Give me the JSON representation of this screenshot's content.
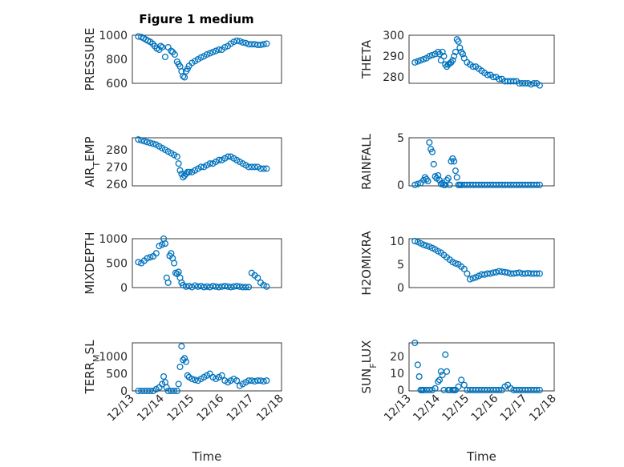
{
  "figure_title": "Figure 1 medium",
  "colors": {
    "marker": "#0072BD",
    "axis": "#262626"
  },
  "chart_data": [
    {
      "type": "scatter",
      "id": "pressure",
      "title": "Figure 1 medium",
      "ylabel": "PRESSURE",
      "ylabel_parts": [
        {
          "t": "PRESSURE"
        }
      ],
      "xlabel": "",
      "ylim": [
        600,
        1000
      ],
      "yticks": [
        "600",
        "800",
        "1000"
      ],
      "xticks": [],
      "xlim": [
        0,
        5
      ],
      "x": [
        0.2,
        0.3,
        0.38,
        0.45,
        0.52,
        0.6,
        0.68,
        0.75,
        0.82,
        0.9,
        0.95,
        1.0,
        1.1,
        1.2,
        1.3,
        1.35,
        1.42,
        1.5,
        1.55,
        1.6,
        1.65,
        1.7,
        1.75,
        1.8,
        1.85,
        1.9,
        2.0,
        2.1,
        2.2,
        2.3,
        2.4,
        2.5,
        2.6,
        2.7,
        2.8,
        2.9,
        3.0,
        3.1,
        3.2,
        3.3,
        3.4,
        3.5,
        3.6,
        3.7,
        3.8,
        3.9,
        4.0,
        4.1,
        4.2,
        4.3,
        4.4,
        4.5
      ],
      "y": [
        990,
        985,
        975,
        965,
        955,
        945,
        930,
        910,
        890,
        880,
        910,
        900,
        820,
        900,
        870,
        860,
        840,
        780,
        760,
        740,
        700,
        660,
        650,
        700,
        720,
        745,
        770,
        785,
        800,
        815,
        825,
        840,
        850,
        860,
        870,
        880,
        880,
        900,
        910,
        930,
        945,
        955,
        950,
        940,
        935,
        925,
        925,
        925,
        920,
        920,
        925,
        930
      ]
    },
    {
      "type": "scatter",
      "id": "theta",
      "ylabel": "THETA",
      "ylabel_parts": [
        {
          "t": "THETA"
        }
      ],
      "xlabel": "",
      "ylim": [
        277,
        300
      ],
      "yticks": [
        "280",
        "290",
        "300"
      ],
      "xticks": [],
      "xlim": [
        0,
        5
      ],
      "x": [
        0.2,
        0.3,
        0.4,
        0.5,
        0.6,
        0.7,
        0.8,
        0.9,
        1.0,
        1.05,
        1.1,
        1.15,
        1.2,
        1.25,
        1.3,
        1.35,
        1.4,
        1.45,
        1.5,
        1.55,
        1.6,
        1.65,
        1.7,
        1.75,
        1.8,
        1.85,
        1.9,
        2.0,
        2.1,
        2.2,
        2.3,
        2.4,
        2.5,
        2.6,
        2.7,
        2.8,
        2.9,
        3.0,
        3.1,
        3.2,
        3.3,
        3.4,
        3.5,
        3.6,
        3.7,
        3.8,
        3.9,
        4.0,
        4.1,
        4.2,
        4.3,
        4.4,
        4.5
      ],
      "y": [
        287,
        287.5,
        288,
        288.5,
        289,
        290,
        290.5,
        291,
        292,
        291,
        288,
        292,
        290,
        286,
        285,
        286,
        286.5,
        287,
        288,
        290,
        292,
        298,
        297,
        294,
        292,
        291,
        289,
        287,
        286,
        285,
        285,
        284,
        283,
        282,
        281,
        281,
        280,
        280,
        279,
        279,
        278,
        278,
        278,
        278,
        278,
        277,
        277,
        277,
        277,
        276.5,
        277,
        277,
        276
      ]
    },
    {
      "type": "scatter",
      "id": "airtemp",
      "ylabel": "AIR_TEMP",
      "ylabel_parts": [
        {
          "t": "AIR"
        },
        {
          "t": "T",
          "sub": true
        },
        {
          "t": "EMP"
        }
      ],
      "xlabel": "",
      "ylim": [
        259,
        287
      ],
      "yticks": [
        "260",
        "270",
        "280"
      ],
      "xticks": [],
      "xlim": [
        0,
        5
      ],
      "x": [
        0.2,
        0.3,
        0.4,
        0.5,
        0.6,
        0.7,
        0.8,
        0.9,
        1.0,
        1.1,
        1.2,
        1.3,
        1.4,
        1.5,
        1.55,
        1.6,
        1.65,
        1.7,
        1.75,
        1.8,
        1.85,
        1.9,
        2.0,
        2.1,
        2.2,
        2.3,
        2.4,
        2.5,
        2.6,
        2.7,
        2.8,
        2.9,
        3.0,
        3.1,
        3.2,
        3.3,
        3.4,
        3.5,
        3.6,
        3.7,
        3.8,
        3.9,
        4.0,
        4.1,
        4.2,
        4.3,
        4.4,
        4.5
      ],
      "y": [
        286,
        285.5,
        285,
        284.5,
        284,
        283.5,
        283,
        282,
        281,
        280,
        279,
        278,
        277,
        276,
        272,
        268,
        266,
        264,
        265,
        266,
        267,
        267,
        267,
        268,
        269,
        270,
        270,
        271,
        272,
        272,
        273,
        274,
        274,
        275,
        276,
        276,
        275,
        274,
        273,
        272,
        271,
        270,
        270,
        270,
        270,
        269,
        269,
        269
      ]
    },
    {
      "type": "scatter",
      "id": "rainfall",
      "ylabel": "RAINFALL",
      "ylabel_parts": [
        {
          "t": "RAINFALL"
        }
      ],
      "xlabel": "",
      "ylim": [
        -0.1,
        5
      ],
      "yticks": [
        "0",
        "5"
      ],
      "xticks": [],
      "xlim": [
        0,
        5
      ],
      "x": [
        0.2,
        0.3,
        0.4,
        0.5,
        0.55,
        0.6,
        0.65,
        0.7,
        0.75,
        0.8,
        0.85,
        0.9,
        0.95,
        1.0,
        1.05,
        1.1,
        1.15,
        1.2,
        1.25,
        1.3,
        1.35,
        1.4,
        1.45,
        1.5,
        1.55,
        1.6,
        1.65,
        1.7,
        1.75,
        1.8,
        1.9,
        2.0,
        2.1,
        2.2,
        2.3,
        2.4,
        2.5,
        2.6,
        2.7,
        2.8,
        2.9,
        3.0,
        3.1,
        3.2,
        3.3,
        3.4,
        3.5,
        3.6,
        3.7,
        3.8,
        3.9,
        4.0,
        4.1,
        4.2,
        4.3,
        4.4,
        4.5
      ],
      "y": [
        0,
        0.1,
        0.2,
        0.5,
        0.8,
        0.6,
        0.4,
        4.5,
        3.8,
        3.5,
        2.2,
        0.9,
        0.7,
        1.0,
        0.5,
        0.1,
        0.2,
        0,
        0,
        0.5,
        0.7,
        0,
        2.5,
        2.8,
        2.5,
        1.5,
        0.8,
        0,
        0,
        0,
        0,
        0,
        0,
        0,
        0,
        0,
        0,
        0,
        0,
        0,
        0,
        0,
        0,
        0,
        0,
        0,
        0,
        0,
        0,
        0,
        0,
        0,
        0,
        0,
        0,
        0,
        0
      ]
    },
    {
      "type": "scatter",
      "id": "mixdepth",
      "ylabel": "MIXDEPTH",
      "ylabel_parts": [
        {
          "t": "MIXDEPTH"
        }
      ],
      "xlabel": "",
      "ylim": [
        0,
        1000
      ],
      "yticks": [
        "0",
        "500",
        "1000"
      ],
      "xticks": [],
      "xlim": [
        0,
        5
      ],
      "x": [
        0.2,
        0.3,
        0.4,
        0.5,
        0.6,
        0.7,
        0.8,
        0.9,
        1.0,
        1.05,
        1.1,
        1.15,
        1.2,
        1.25,
        1.3,
        1.35,
        1.4,
        1.45,
        1.5,
        1.55,
        1.6,
        1.65,
        1.7,
        1.8,
        1.9,
        2.0,
        2.1,
        2.2,
        2.3,
        2.4,
        2.5,
        2.6,
        2.7,
        2.8,
        2.9,
        3.0,
        3.1,
        3.2,
        3.3,
        3.4,
        3.5,
        3.6,
        3.7,
        3.8,
        3.9,
        4.0,
        4.1,
        4.2,
        4.3,
        4.4,
        4.5
      ],
      "y": [
        520,
        500,
        550,
        600,
        620,
        640,
        700,
        850,
        880,
        1000,
        900,
        200,
        100,
        650,
        700,
        600,
        500,
        300,
        280,
        320,
        200,
        100,
        50,
        20,
        30,
        10,
        40,
        20,
        30,
        10,
        20,
        10,
        30,
        20,
        10,
        20,
        30,
        20,
        10,
        20,
        30,
        20,
        10,
        10,
        10,
        300,
        250,
        200,
        100,
        50,
        20
      ]
    },
    {
      "type": "scatter",
      "id": "h2omixra",
      "ylabel": "H2OMIXRA",
      "ylabel_parts": [
        {
          "t": "H2OMIXRA"
        }
      ],
      "xlabel": "",
      "ylim": [
        0,
        10.5
      ],
      "yticks": [
        "0",
        "5",
        "10"
      ],
      "xticks": [],
      "xlim": [
        0,
        5
      ],
      "x": [
        0.2,
        0.3,
        0.4,
        0.5,
        0.6,
        0.7,
        0.8,
        0.9,
        1.0,
        1.1,
        1.2,
        1.3,
        1.4,
        1.5,
        1.6,
        1.7,
        1.8,
        1.9,
        2.0,
        2.1,
        2.2,
        2.3,
        2.4,
        2.5,
        2.6,
        2.7,
        2.8,
        2.9,
        3.0,
        3.1,
        3.2,
        3.3,
        3.4,
        3.5,
        3.6,
        3.7,
        3.8,
        3.9,
        4.0,
        4.1,
        4.2,
        4.3,
        4.4,
        4.5
      ],
      "y": [
        10,
        9.8,
        9.5,
        9.2,
        9.0,
        8.8,
        8.5,
        8.2,
        7.8,
        7.5,
        7.0,
        6.5,
        6.0,
        5.5,
        5.2,
        5.0,
        4.5,
        4.0,
        3.0,
        1.8,
        2.0,
        2.2,
        2.5,
        2.8,
        2.8,
        3.0,
        3.0,
        3.2,
        3.3,
        3.5,
        3.4,
        3.3,
        3.2,
        3.0,
        3.0,
        3.1,
        3.2,
        3.0,
        3.0,
        3.1,
        3.0,
        3.0,
        3.0,
        3.0
      ]
    },
    {
      "type": "scatter",
      "id": "terrmsl",
      "ylabel": "TERR_MSL",
      "ylabel_parts": [
        {
          "t": "TERR"
        },
        {
          "t": "M",
          "sub": true
        },
        {
          "t": "SL"
        }
      ],
      "xlabel": "Time",
      "ylim": [
        0,
        1400
      ],
      "yticks": [
        "0",
        "500",
        "1000"
      ],
      "xticks": [
        "12/13",
        "12/14",
        "12/15",
        "12/16",
        "12/17",
        "12/18"
      ],
      "xlim": [
        0,
        5
      ],
      "x": [
        0.2,
        0.3,
        0.4,
        0.5,
        0.6,
        0.7,
        0.8,
        0.9,
        1.0,
        1.05,
        1.1,
        1.15,
        1.2,
        1.3,
        1.4,
        1.5,
        1.55,
        1.6,
        1.65,
        1.7,
        1.75,
        1.8,
        1.85,
        1.9,
        2.0,
        2.1,
        2.2,
        2.3,
        2.4,
        2.5,
        2.6,
        2.7,
        2.8,
        2.9,
        3.0,
        3.1,
        3.2,
        3.3,
        3.4,
        3.5,
        3.6,
        3.7,
        3.8,
        3.9,
        4.0,
        4.1,
        4.2,
        4.3,
        4.4,
        4.5
      ],
      "y": [
        0,
        0,
        0,
        0,
        0,
        0,
        50,
        100,
        200,
        420,
        250,
        100,
        0,
        0,
        0,
        0,
        200,
        700,
        1300,
        900,
        950,
        850,
        450,
        400,
        350,
        320,
        300,
        350,
        400,
        450,
        500,
        400,
        350,
        400,
        450,
        300,
        250,
        300,
        350,
        300,
        150,
        200,
        250,
        300,
        300,
        280,
        300,
        300,
        280,
        300
      ]
    },
    {
      "type": "scatter",
      "id": "sunflux",
      "ylabel": "SUN_FLUX",
      "ylabel_parts": [
        {
          "t": "SUN"
        },
        {
          "t": "F",
          "sub": true
        },
        {
          "t": "LUX"
        }
      ],
      "xlabel": "Time",
      "ylim": [
        -0.5,
        28
      ],
      "yticks": [
        "0",
        "10",
        "20"
      ],
      "xticks": [
        "12/13",
        "12/14",
        "12/15",
        "12/16",
        "12/17",
        "12/18"
      ],
      "xlim": [
        0,
        5
      ],
      "x": [
        0.2,
        0.3,
        0.35,
        0.4,
        0.45,
        0.5,
        0.6,
        0.7,
        0.8,
        0.9,
        1.0,
        1.05,
        1.1,
        1.15,
        1.2,
        1.25,
        1.3,
        1.35,
        1.4,
        1.5,
        1.55,
        1.6,
        1.7,
        1.8,
        1.9,
        2.0,
        2.1,
        2.2,
        2.3,
        2.4,
        2.5,
        2.6,
        2.7,
        2.8,
        2.9,
        3.0,
        3.1,
        3.2,
        3.3,
        3.4,
        3.5,
        3.6,
        3.7,
        3.8,
        3.9,
        4.0,
        4.1,
        4.2,
        4.3,
        4.4,
        4.5
      ],
      "y": [
        28,
        15,
        8,
        0,
        0,
        0,
        0,
        0,
        0,
        1,
        5,
        6,
        11,
        9,
        0,
        21,
        11,
        0,
        0,
        0,
        0,
        0,
        2,
        6,
        3,
        0,
        0,
        0,
        0,
        0,
        0,
        0,
        0,
        0,
        0,
        0,
        0,
        0,
        2,
        3,
        1,
        0,
        0,
        0,
        0,
        0,
        0,
        0,
        0,
        0,
        0
      ]
    }
  ]
}
